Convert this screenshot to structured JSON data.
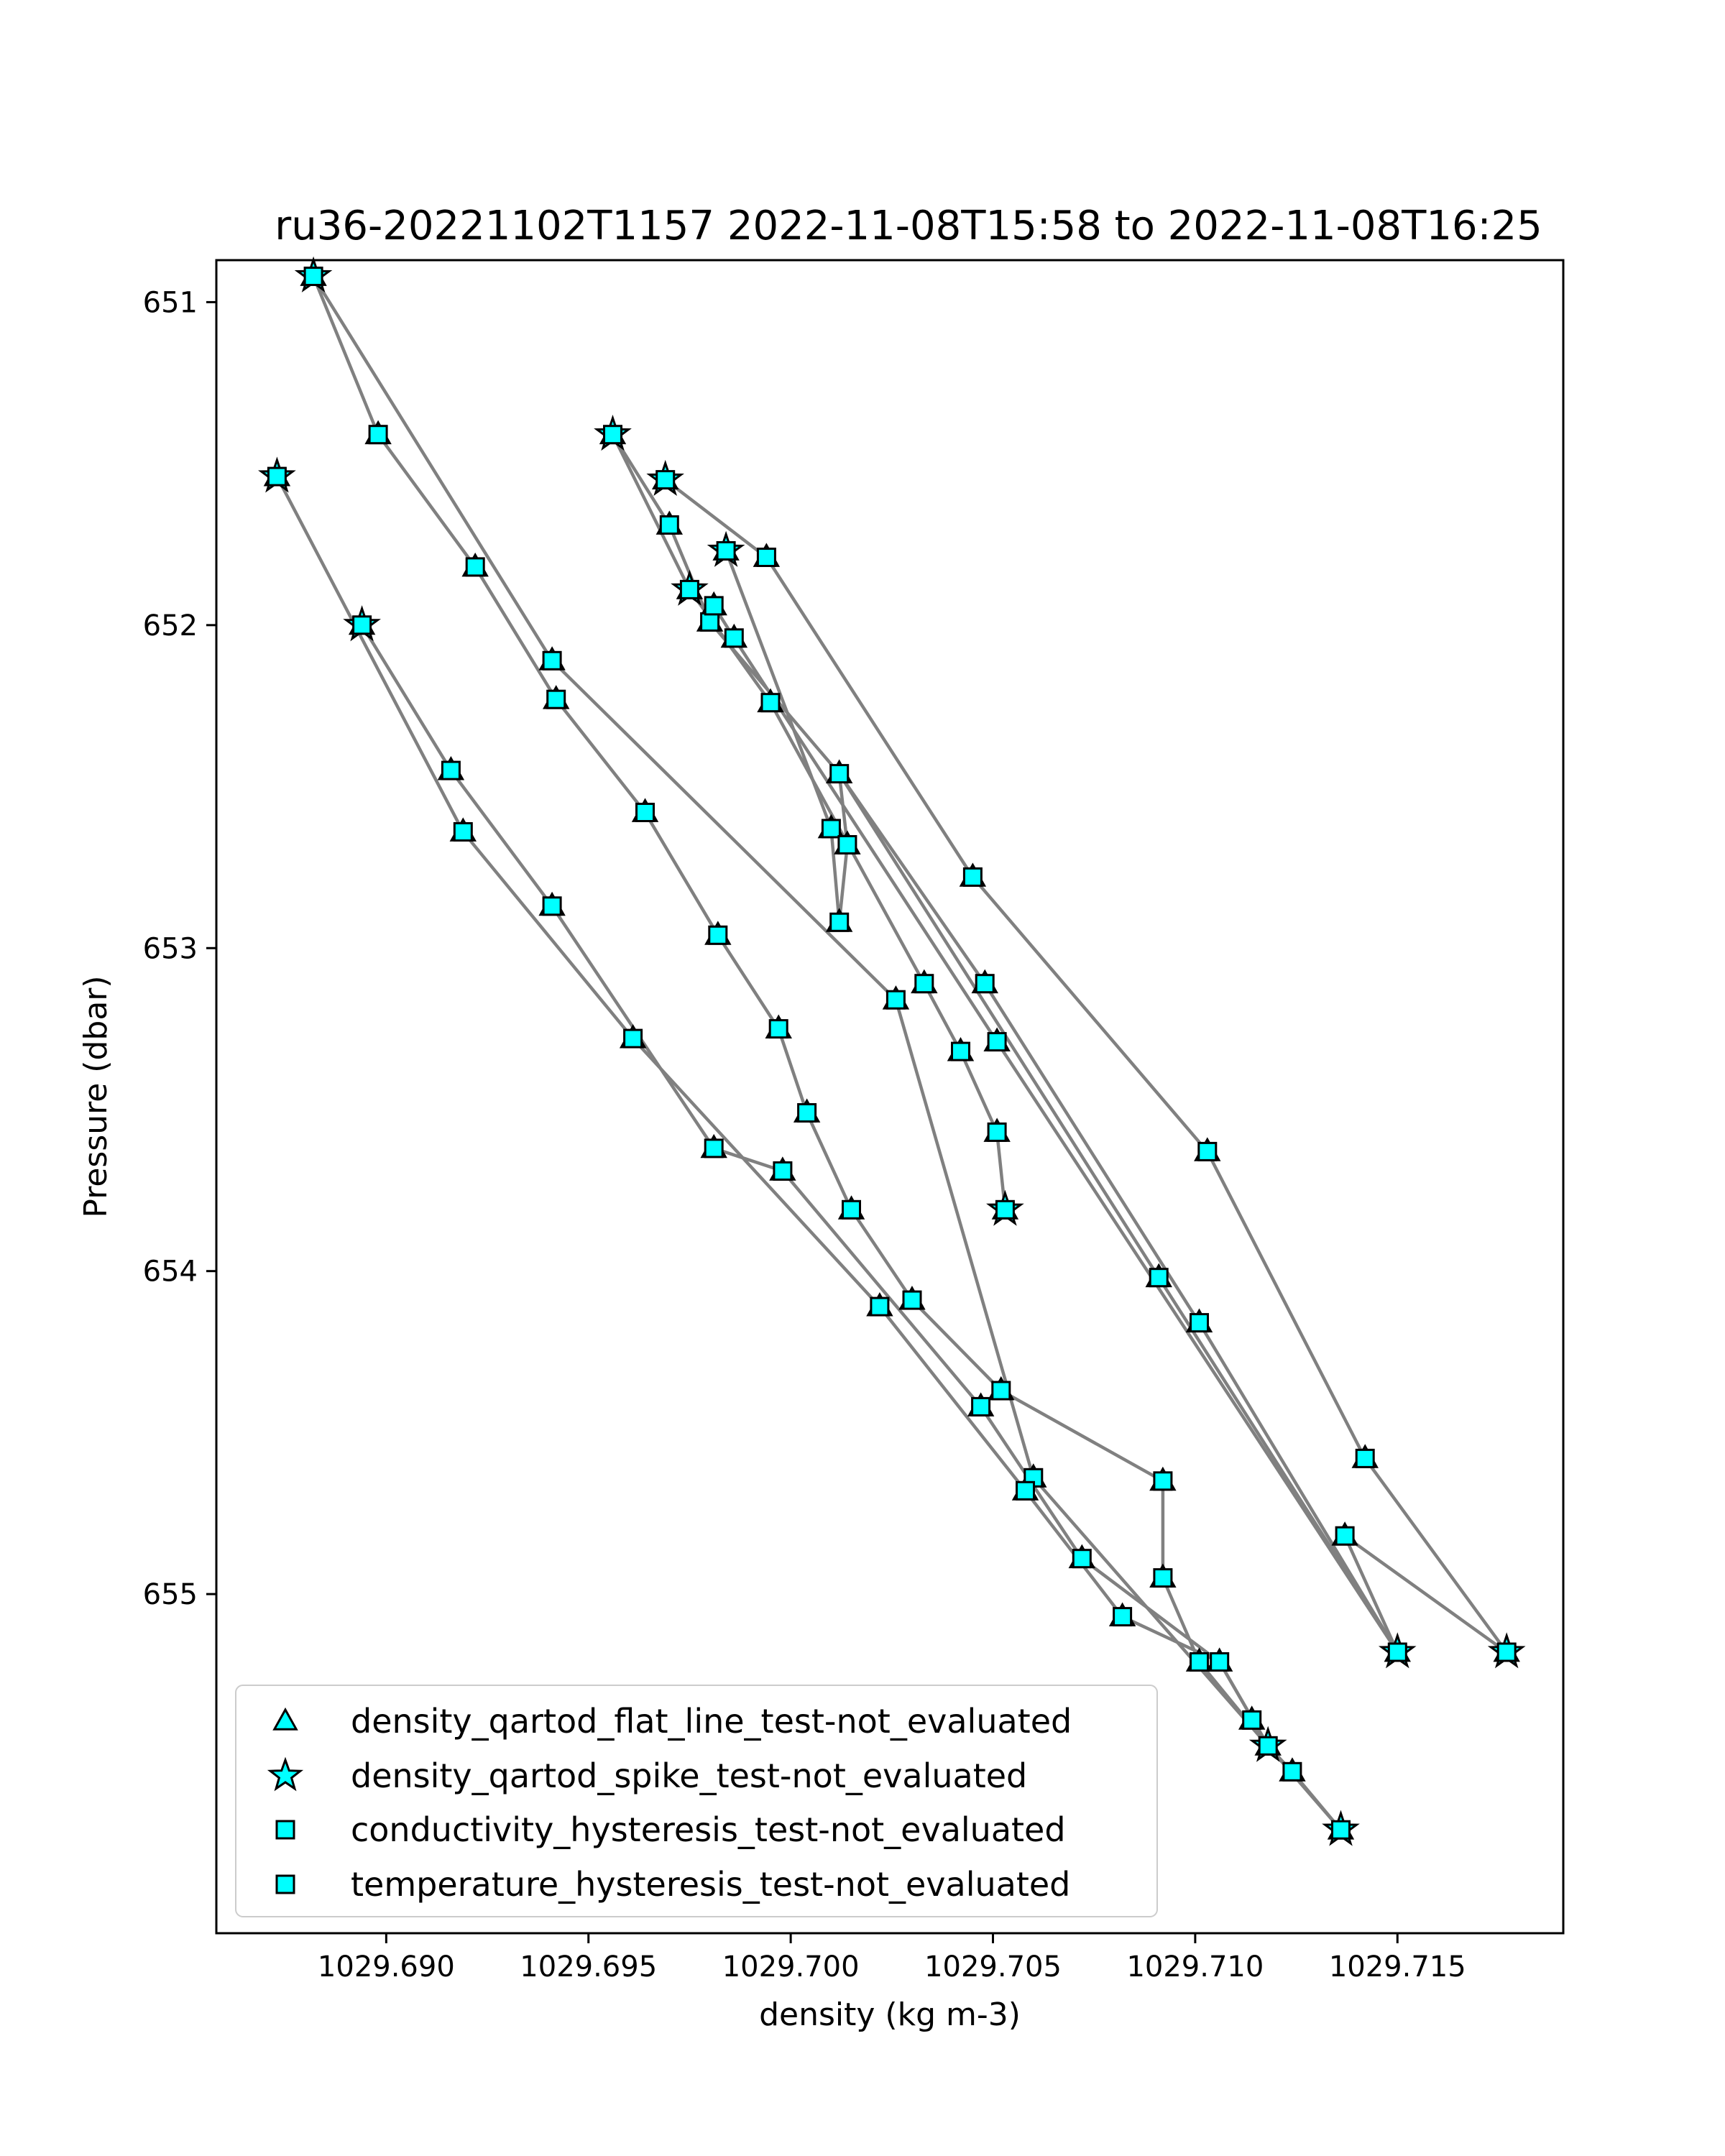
{
  "chart_data": {
    "type": "scatter",
    "title": "ru36-20221102T1157 2022-11-08T15:58 to 2022-11-08T16:25",
    "xlabel": "density (kg m-3)",
    "ylabel": "Pressure (dbar)",
    "xlim": [
      1029.6858,
      1029.7191
    ],
    "ylim": [
      656.05,
      650.87
    ],
    "y_inverted": true,
    "grid": false,
    "legend_position": "lower-left",
    "x_ticks": [
      1029.69,
      1029.695,
      1029.7,
      1029.705,
      1029.71,
      1029.715
    ],
    "x_tick_labels": [
      "1029.690",
      "1029.695",
      "1029.700",
      "1029.705",
      "1029.710",
      "1029.715"
    ],
    "y_ticks": [
      651,
      652,
      653,
      654,
      655
    ],
    "y_tick_labels": [
      "651",
      "652",
      "653",
      "654",
      "655"
    ],
    "colors": {
      "line": "#808080",
      "marker_fill": "#00ffff",
      "marker_edge": "#000000"
    },
    "legend": [
      {
        "label": "density_qartod_flat_line_test-not_evaluated",
        "marker": "triangle"
      },
      {
        "label": "density_qartod_spike_test-not_evaluated",
        "marker": "star"
      },
      {
        "label": "conductivity_hysteresis_test-not_evaluated",
        "marker": "square"
      },
      {
        "label": "temperature_hysteresis_test-not_evaluated",
        "marker": "square"
      }
    ],
    "profiles": [
      {
        "points": [
          [
            1029.7136,
            655.73
          ],
          [
            1029.7124,
            655.55
          ],
          [
            1029.7118,
            655.47
          ],
          [
            1029.7101,
            655.21
          ],
          [
            1029.7092,
            654.95
          ],
          [
            1029.7092,
            654.65
          ],
          [
            1029.7052,
            654.37
          ],
          [
            1029.703,
            654.09
          ],
          [
            1029.7015,
            653.81
          ],
          [
            1029.7004,
            653.51
          ],
          [
            1029.6997,
            653.25
          ],
          [
            1029.6982,
            652.96
          ],
          [
            1029.6964,
            652.58
          ],
          [
            1029.6942,
            652.23
          ],
          [
            1029.6922,
            651.82
          ],
          [
            1029.6898,
            651.41
          ],
          [
            1029.6882,
            650.92
          ]
        ]
      },
      {
        "points": [
          [
            1029.6882,
            650.92
          ],
          [
            1029.6941,
            652.11
          ],
          [
            1029.7026,
            653.16
          ],
          [
            1029.706,
            654.64
          ],
          [
            1029.7118,
            655.47
          ],
          [
            1029.7136,
            655.73
          ]
        ]
      },
      {
        "points": [
          [
            1029.6873,
            651.54
          ],
          [
            1029.6919,
            652.64
          ],
          [
            1029.6961,
            653.28
          ],
          [
            1029.7022,
            654.11
          ],
          [
            1029.7058,
            654.68
          ],
          [
            1029.7082,
            655.07
          ],
          [
            1029.7106,
            655.21
          ],
          [
            1029.7118,
            655.47
          ],
          [
            1029.7114,
            655.39
          ]
        ]
      },
      {
        "points": [
          [
            1029.6894,
            652.0
          ],
          [
            1029.6916,
            652.45
          ],
          [
            1029.6941,
            652.87
          ],
          [
            1029.6981,
            653.62
          ],
          [
            1029.6998,
            653.69
          ],
          [
            1029.7047,
            654.42
          ],
          [
            1029.7072,
            654.89
          ],
          [
            1029.7106,
            655.21
          ],
          [
            1029.7118,
            655.47
          ]
        ]
      },
      {
        "points": [
          [
            1029.6956,
            651.41
          ],
          [
            1029.6975,
            651.89
          ],
          [
            1029.6995,
            652.24
          ],
          [
            1029.7033,
            653.11
          ],
          [
            1029.7042,
            653.32
          ],
          [
            1029.7051,
            653.57
          ],
          [
            1029.7053,
            653.81
          ]
        ]
      },
      {
        "points": [
          [
            1029.6956,
            651.41
          ],
          [
            1029.697,
            651.69
          ],
          [
            1029.698,
            651.99
          ],
          [
            1029.7012,
            652.46
          ],
          [
            1029.7091,
            654.02
          ],
          [
            1029.715,
            655.18
          ]
        ]
      },
      {
        "points": [
          [
            1029.6969,
            651.55
          ],
          [
            1029.6994,
            651.79
          ],
          [
            1029.7045,
            652.78
          ],
          [
            1029.7103,
            653.63
          ],
          [
            1029.7142,
            654.58
          ],
          [
            1029.7177,
            655.18
          ]
        ]
      },
      {
        "points": [
          [
            1029.6984,
            651.77
          ],
          [
            1029.701,
            652.63
          ],
          [
            1029.7012,
            652.92
          ],
          [
            1029.7014,
            652.68
          ],
          [
            1029.7012,
            652.46
          ],
          [
            1029.7048,
            653.11
          ],
          [
            1029.7101,
            654.16
          ],
          [
            1029.715,
            655.18
          ]
        ]
      },
      {
        "points": [
          [
            1029.6981,
            651.94
          ],
          [
            1029.6986,
            652.04
          ],
          [
            1029.7051,
            653.29
          ],
          [
            1029.715,
            655.18
          ],
          [
            1029.7137,
            654.82
          ],
          [
            1029.7177,
            655.18
          ]
        ]
      }
    ],
    "spike_points": [
      [
        1029.6882,
        650.92
      ],
      [
        1029.6873,
        651.54
      ],
      [
        1029.6894,
        652.0
      ],
      [
        1029.6956,
        651.41
      ],
      [
        1029.6969,
        651.55
      ],
      [
        1029.6984,
        651.77
      ],
      [
        1029.6975,
        651.89
      ],
      [
        1029.7053,
        653.81
      ],
      [
        1029.715,
        655.18
      ],
      [
        1029.7177,
        655.18
      ],
      [
        1029.7118,
        655.47
      ],
      [
        1029.7136,
        655.73
      ]
    ],
    "flat_line_points": [
      [
        1029.7051,
        653.57
      ]
    ]
  }
}
